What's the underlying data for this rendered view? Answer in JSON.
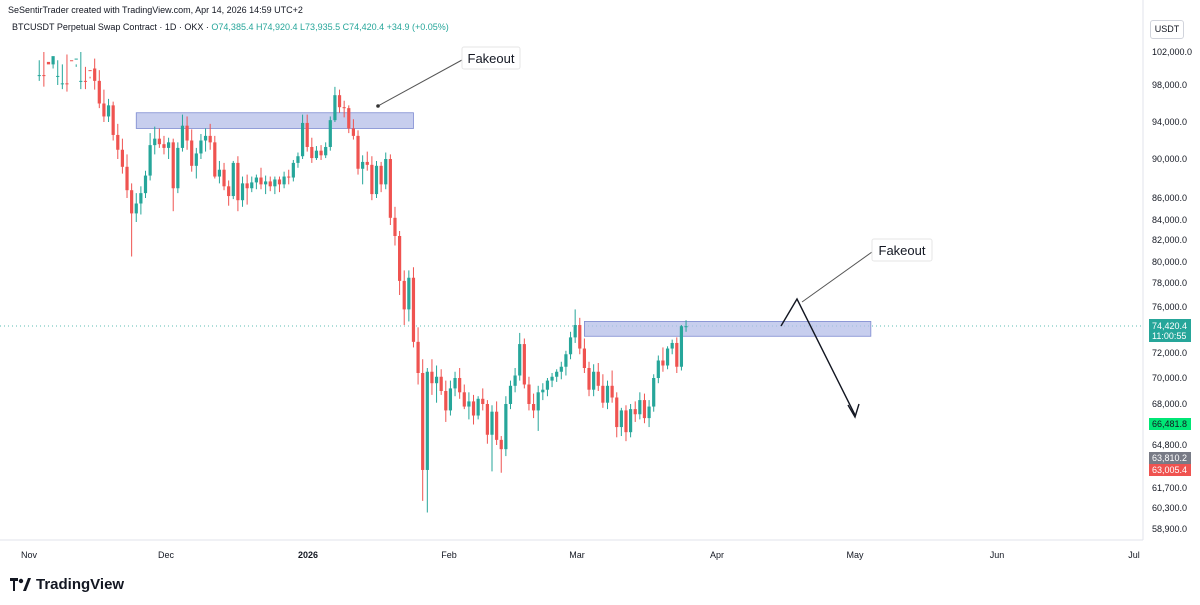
{
  "header": {
    "attribution": "SeSentirTrader created with TradingView.com, Apr 14, 2026 14:59 UTC+2",
    "symbol_line": "BTCUSDT Perpetual Swap Contract · 1D · OKX",
    "open": "O74,385.4",
    "high": "H74,920.4",
    "low": "L73,935.5",
    "close": "C74,420.4",
    "change": "+34.9 (+0.05%)"
  },
  "currency_button": "USDT",
  "footer": {
    "brand": "TradingView"
  },
  "colors": {
    "up": "#26a69a",
    "down": "#ef5350",
    "zone": "#b4bde8",
    "zone_border": "#7d8ad1"
  },
  "chart_data": {
    "type": "candlestick",
    "price_axis_labels": [
      "102,000.0",
      "98,000.0",
      "94,000.0",
      "90,000.0",
      "86,000.0",
      "84,000.0",
      "82,000.0",
      "80,000.0",
      "78,000.0",
      "76,000.0",
      "72,000.0",
      "70,000.0",
      "68,000.0",
      "64,800.0",
      "61,700.0",
      "60,300.0",
      "58,900.0"
    ],
    "time_axis_labels": [
      "Nov",
      "Dec",
      "2026",
      "Feb",
      "Mar",
      "Apr",
      "May",
      "Jun",
      "Jul"
    ],
    "price_badges": [
      {
        "text": "74,420.4",
        "sub": "11:00:55",
        "color": "#26a69a"
      },
      {
        "text": "66,481.8",
        "color": "#00e676"
      },
      {
        "text": "63,810.2",
        "color": "#787b86"
      },
      {
        "text": "63,005.4",
        "color": "#ef5350"
      }
    ],
    "annotations": [
      {
        "label": "Fakeout"
      },
      {
        "label": "Fakeout"
      }
    ],
    "zones": [
      {
        "from_date": "2025-11-24",
        "to_date": "2026-01-23",
        "low": 93300,
        "high": 95000
      },
      {
        "from_date": "2026-03-01",
        "to_date": "2026-05-02",
        "low": 73500,
        "high": 74800
      }
    ],
    "candles": [
      [
        104000,
        105500,
        103000,
        104800
      ],
      [
        104800,
        106200,
        102000,
        103200
      ],
      [
        103200,
        104500,
        99500,
        100500
      ],
      [
        100500,
        103000,
        100000,
        102500
      ],
      [
        102500,
        106000,
        101000,
        104900
      ],
      [
        104900,
        106500,
        103500,
        105800
      ],
      [
        105800,
        106800,
        102300,
        103000
      ],
      [
        103000,
        104000,
        100000,
        101200
      ],
      [
        101200,
        103800,
        100500,
        102800
      ],
      [
        102800,
        106500,
        102000,
        105500
      ],
      [
        105500,
        106500,
        103800,
        104200
      ],
      [
        104200,
        105200,
        99000,
        100000
      ],
      [
        100000,
        101200,
        97500,
        98500
      ],
      [
        98500,
        99800,
        95500,
        96000
      ],
      [
        96000,
        97500,
        94000,
        94600
      ],
      [
        94600,
        96500,
        94000,
        95800
      ],
      [
        95800,
        96200,
        92000,
        92600
      ],
      [
        92600,
        93800,
        90000,
        91000
      ],
      [
        91000,
        92200,
        88500,
        89200
      ],
      [
        89200,
        90500,
        86000,
        86800
      ],
      [
        86800,
        87500,
        80500,
        84600
      ],
      [
        84600,
        86500,
        83800,
        85500
      ],
      [
        85500,
        87200,
        84500,
        86500
      ],
      [
        86500,
        88800,
        86000,
        88300
      ],
      [
        88300,
        92800,
        87800,
        91500
      ],
      [
        91500,
        93500,
        90500,
        92200
      ],
      [
        92200,
        93300,
        91200,
        91600
      ],
      [
        91600,
        92500,
        90500,
        91200
      ],
      [
        91200,
        92300,
        90000,
        91800
      ],
      [
        91800,
        92200,
        84800,
        87000
      ],
      [
        87000,
        91800,
        86500,
        91200
      ],
      [
        91200,
        94800,
        90800,
        93600
      ],
      [
        93600,
        94600,
        91000,
        92000
      ],
      [
        92000,
        93200,
        88700,
        89300
      ],
      [
        89300,
        91200,
        88000,
        90600
      ],
      [
        90600,
        92700,
        90000,
        92000
      ],
      [
        92000,
        93300,
        90800,
        92500
      ],
      [
        92500,
        93800,
        91000,
        91800
      ],
      [
        91800,
        92500,
        88000,
        88200
      ],
      [
        88200,
        89800,
        87500,
        88900
      ],
      [
        88900,
        89600,
        86800,
        87200
      ],
      [
        87200,
        87800,
        85300,
        86200
      ],
      [
        86200,
        89800,
        85900,
        89600
      ],
      [
        89600,
        90300,
        84800,
        85800
      ],
      [
        85800,
        88200,
        85200,
        87500
      ],
      [
        87500,
        88400,
        85400,
        87000
      ],
      [
        87000,
        88200,
        86600,
        87600
      ],
      [
        87600,
        88400,
        86900,
        88100
      ],
      [
        88100,
        89100,
        86900,
        87400
      ],
      [
        87400,
        88300,
        86400,
        87700
      ],
      [
        87700,
        88200,
        86700,
        87200
      ],
      [
        87200,
        88200,
        86400,
        87900
      ],
      [
        87900,
        88200,
        86600,
        87400
      ],
      [
        87400,
        88700,
        87000,
        88200
      ],
      [
        88200,
        88900,
        87400,
        88100
      ],
      [
        88100,
        89900,
        87700,
        89600
      ],
      [
        89600,
        90700,
        89100,
        90300
      ],
      [
        90300,
        94800,
        90000,
        93900
      ],
      [
        93900,
        94800,
        90800,
        91300
      ],
      [
        91300,
        92300,
        89600,
        90100
      ],
      [
        90100,
        91400,
        89900,
        90900
      ],
      [
        90900,
        91500,
        89900,
        90400
      ],
      [
        90400,
        91800,
        90100,
        91300
      ],
      [
        91300,
        94600,
        90900,
        94200
      ],
      [
        94200,
        97800,
        94000,
        96900
      ],
      [
        96900,
        97500,
        95000,
        95600
      ],
      [
        95600,
        96300,
        94500,
        95500
      ],
      [
        95500,
        95800,
        92800,
        93300
      ],
      [
        93300,
        94300,
        92100,
        92500
      ],
      [
        92500,
        93100,
        88400,
        89000
      ],
      [
        89000,
        90400,
        87400,
        89700
      ],
      [
        89700,
        90800,
        88800,
        89400
      ],
      [
        89400,
        90300,
        85800,
        86400
      ],
      [
        86400,
        89800,
        86000,
        89300
      ],
      [
        89300,
        89700,
        86600,
        87400
      ],
      [
        87400,
        90700,
        86900,
        90000
      ],
      [
        90000,
        90500,
        83500,
        84200
      ],
      [
        84200,
        85200,
        81500,
        82400
      ],
      [
        82400,
        82900,
        77000,
        78200
      ],
      [
        78200,
        79200,
        74500,
        75800
      ],
      [
        75800,
        79200,
        74800,
        78500
      ],
      [
        78500,
        79500,
        72500,
        73000
      ],
      [
        73000,
        74300,
        69500,
        70400
      ],
      [
        70400,
        71500,
        60800,
        63000
      ],
      [
        63000,
        70800,
        60000,
        70500
      ],
      [
        70500,
        71500,
        68700,
        69600
      ],
      [
        69600,
        71000,
        68100,
        70100
      ],
      [
        70100,
        70700,
        68700,
        69000
      ],
      [
        69000,
        69800,
        66600,
        67500
      ],
      [
        67500,
        69800,
        67100,
        69200
      ],
      [
        69200,
        70500,
        68600,
        70000
      ],
      [
        70000,
        70800,
        68400,
        68900
      ],
      [
        68900,
        69500,
        67600,
        67800
      ],
      [
        67800,
        68900,
        66800,
        68200
      ],
      [
        68200,
        68700,
        66400,
        67100
      ],
      [
        67100,
        68600,
        66800,
        68400
      ],
      [
        68400,
        69200,
        67500,
        68000
      ],
      [
        68000,
        68300,
        64900,
        65600
      ],
      [
        65600,
        67900,
        62900,
        67400
      ],
      [
        67400,
        68200,
        64800,
        65200
      ],
      [
        65200,
        65500,
        62800,
        64500
      ],
      [
        64500,
        68600,
        64000,
        68000
      ],
      [
        68000,
        69800,
        67600,
        69400
      ],
      [
        69400,
        70800,
        68900,
        70200
      ],
      [
        70200,
        73800,
        69800,
        72800
      ],
      [
        72800,
        73300,
        69200,
        69500
      ],
      [
        69500,
        70100,
        67500,
        68000
      ],
      [
        68000,
        68800,
        66900,
        67500
      ],
      [
        67500,
        69400,
        65900,
        68900
      ],
      [
        68900,
        69600,
        68300,
        69100
      ],
      [
        69100,
        70000,
        68600,
        69800
      ],
      [
        69800,
        70400,
        69300,
        70100
      ],
      [
        70100,
        70700,
        69700,
        70500
      ],
      [
        70500,
        71300,
        69900,
        70900
      ],
      [
        70900,
        72200,
        70200,
        71900
      ],
      [
        71900,
        73900,
        71500,
        73400
      ],
      [
        73400,
        75800,
        72900,
        74500
      ],
      [
        74500,
        75100,
        71900,
        72400
      ],
      [
        72400,
        73300,
        70400,
        70800
      ],
      [
        70800,
        71300,
        68600,
        69100
      ],
      [
        69100,
        71100,
        68600,
        70500
      ],
      [
        70500,
        71200,
        69000,
        69400
      ],
      [
        69400,
        70300,
        67700,
        68100
      ],
      [
        68100,
        69800,
        67600,
        69400
      ],
      [
        69400,
        70600,
        68100,
        68500
      ],
      [
        68500,
        68900,
        65400,
        66200
      ],
      [
        66200,
        67700,
        65500,
        67500
      ],
      [
        67500,
        67900,
        65100,
        65800
      ],
      [
        65800,
        68000,
        65400,
        67600
      ],
      [
        67600,
        68200,
        66600,
        67200
      ],
      [
        67200,
        68900,
        66800,
        68300
      ],
      [
        68300,
        68800,
        66500,
        66900
      ],
      [
        66900,
        68300,
        66200,
        67800
      ],
      [
        67800,
        70300,
        67400,
        70000
      ],
      [
        70000,
        71800,
        69600,
        71400
      ],
      [
        71400,
        72500,
        70500,
        71000
      ],
      [
        71000,
        72600,
        70700,
        72400
      ],
      [
        72400,
        73200,
        71900,
        72900
      ],
      [
        72900,
        73400,
        70400,
        70900
      ],
      [
        70900,
        74500,
        70600,
        74400
      ],
      [
        74400,
        74900,
        73900,
        74400
      ]
    ]
  }
}
